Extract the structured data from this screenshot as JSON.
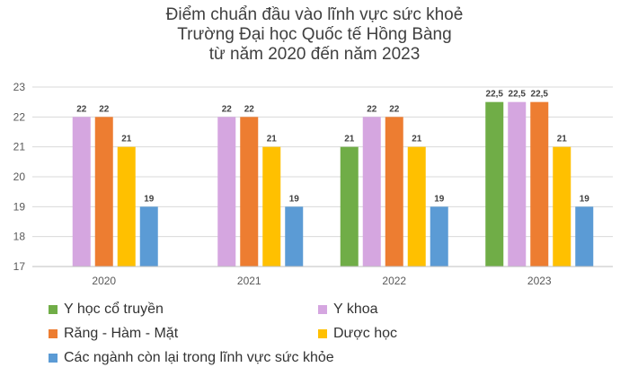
{
  "chart_data": {
    "type": "bar",
    "title": "Điểm chuẩn đầu vào lĩnh vực sức khoẻ",
    "subtitle": [
      "Trường Đại học Quốc tế Hồng Bàng",
      "từ năm 2020 đến năm 2023"
    ],
    "categories": [
      "2020",
      "2021",
      "2022",
      "2023"
    ],
    "ylim": [
      17,
      23
    ],
    "yticks": [
      "17",
      "18",
      "19",
      "20",
      "21",
      "22",
      "23"
    ],
    "grid": true,
    "legend_position": "bottom",
    "series": [
      {
        "name": "Y học cổ truyền",
        "color": "#70ad47",
        "values": [
          null,
          null,
          21,
          22.5
        ],
        "labels": [
          "",
          "",
          "21",
          "22,5"
        ]
      },
      {
        "name": "Y khoa",
        "color": "#d5a6e0",
        "values": [
          22,
          22,
          22,
          22.5
        ],
        "labels": [
          "22",
          "22",
          "22",
          "22,5"
        ]
      },
      {
        "name": "Răng - Hàm - Mặt",
        "color": "#ed7d31",
        "values": [
          22,
          22,
          22,
          22.5
        ],
        "labels": [
          "22",
          "22",
          "22",
          "22,5"
        ]
      },
      {
        "name": "Dược học",
        "color": "#ffc000",
        "values": [
          21,
          21,
          21,
          21
        ],
        "labels": [
          "21",
          "21",
          "21",
          "21"
        ]
      },
      {
        "name": "Các ngành còn lại trong lĩnh vực sức khỏe",
        "color": "#5b9bd5",
        "values": [
          19,
          19,
          19,
          19
        ],
        "labels": [
          "19",
          "19",
          "19",
          "19"
        ]
      }
    ]
  }
}
